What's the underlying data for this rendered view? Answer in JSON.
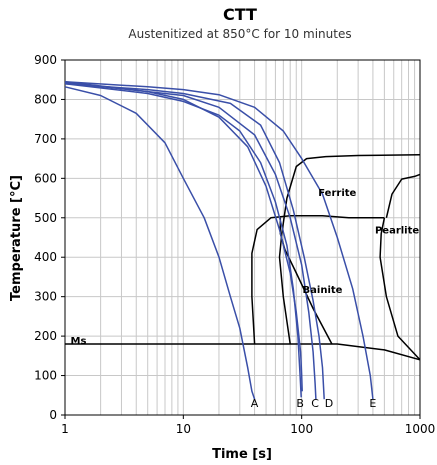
{
  "chart_data": {
    "type": "line",
    "title": "CTT",
    "subtitle": "Austenitized at 850°C for 10 minutes",
    "xlabel": "Time [s]",
    "ylabel": "Temperature [°C]",
    "x_scale": "log",
    "xlim": [
      1,
      1000
    ],
    "ylim": [
      0,
      900
    ],
    "x_ticks": [
      1,
      10,
      100,
      1000
    ],
    "x_tick_labels": [
      "1",
      "10",
      "100",
      "1000"
    ],
    "y_ticks": [
      0,
      100,
      200,
      300,
      400,
      500,
      600,
      700,
      800,
      900
    ],
    "grid": true,
    "cooling_color": "#3a4fa8",
    "boundary_color": "#000000",
    "cooling_curves": [
      {
        "name": "A",
        "label_at": [
          40,
          30
        ],
        "points": [
          [
            1,
            832
          ],
          [
            2,
            810
          ],
          [
            4,
            765
          ],
          [
            7,
            690
          ],
          [
            10,
            600
          ],
          [
            15,
            500
          ],
          [
            20,
            400
          ],
          [
            25,
            300
          ],
          [
            30,
            220
          ],
          [
            35,
            120
          ],
          [
            38,
            60
          ],
          [
            40,
            40
          ]
        ]
      },
      {
        "name": "",
        "points": [
          [
            1,
            845
          ],
          [
            5,
            820
          ],
          [
            10,
            800
          ],
          [
            20,
            755
          ],
          [
            35,
            680
          ],
          [
            50,
            580
          ],
          [
            65,
            470
          ],
          [
            80,
            360
          ],
          [
            90,
            260
          ],
          [
            98,
            160
          ],
          [
            100,
            100
          ],
          [
            101,
            60
          ]
        ]
      },
      {
        "name": "B",
        "label_at": [
          97,
          30
        ],
        "points": [
          [
            1,
            840
          ],
          [
            5,
            815
          ],
          [
            10,
            795
          ],
          [
            20,
            760
          ],
          [
            30,
            720
          ],
          [
            45,
            640
          ],
          [
            60,
            540
          ],
          [
            75,
            430
          ],
          [
            85,
            320
          ],
          [
            93,
            200
          ],
          [
            97,
            100
          ],
          [
            99,
            45
          ]
        ]
      },
      {
        "name": "C",
        "label_at": [
          130,
          30
        ],
        "points": [
          [
            1,
            842
          ],
          [
            5,
            820
          ],
          [
            10,
            810
          ],
          [
            20,
            780
          ],
          [
            40,
            710
          ],
          [
            60,
            610
          ],
          [
            80,
            500
          ],
          [
            100,
            380
          ],
          [
            115,
            260
          ],
          [
            125,
            160
          ],
          [
            130,
            80
          ],
          [
            132,
            40
          ]
        ]
      },
      {
        "name": "D",
        "label_at": [
          170,
          30
        ],
        "points": [
          [
            1,
            840
          ],
          [
            5,
            825
          ],
          [
            10,
            815
          ],
          [
            25,
            790
          ],
          [
            45,
            735
          ],
          [
            65,
            640
          ],
          [
            85,
            520
          ],
          [
            105,
            400
          ],
          [
            125,
            290
          ],
          [
            140,
            200
          ],
          [
            150,
            120
          ],
          [
            155,
            40
          ]
        ]
      },
      {
        "name": "E",
        "label_at": [
          400,
          30
        ],
        "points": [
          [
            1,
            845
          ],
          [
            5,
            832
          ],
          [
            10,
            825
          ],
          [
            20,
            812
          ],
          [
            40,
            780
          ],
          [
            70,
            720
          ],
          [
            100,
            650
          ],
          [
            150,
            560
          ],
          [
            200,
            450
          ],
          [
            270,
            320
          ],
          [
            330,
            200
          ],
          [
            380,
            100
          ],
          [
            400,
            40
          ]
        ]
      }
    ],
    "phase_boundaries": [
      {
        "name": "ferrite-start",
        "points": [
          [
            80,
            180
          ],
          [
            70,
            300
          ],
          [
            65,
            400
          ],
          [
            68,
            460
          ],
          [
            75,
            550
          ],
          [
            90,
            630
          ],
          [
            110,
            650
          ],
          [
            160,
            655
          ],
          [
            300,
            658
          ],
          [
            1000,
            660
          ]
        ]
      },
      {
        "name": "ferrite-finish",
        "points": [
          [
            520,
            500
          ],
          [
            580,
            560
          ],
          [
            700,
            598
          ],
          [
            900,
            605
          ],
          [
            1000,
            610
          ]
        ]
      },
      {
        "name": "bainite-start",
        "points": [
          [
            40,
            180
          ],
          [
            38,
            300
          ],
          [
            38,
            410
          ],
          [
            42,
            470
          ],
          [
            55,
            500
          ],
          [
            80,
            505
          ],
          [
            150,
            505
          ],
          [
            250,
            500
          ],
          [
            500,
            500
          ]
        ]
      },
      {
        "name": "pearlite-finish",
        "points": [
          [
            500,
            500
          ],
          [
            470,
            460
          ],
          [
            460,
            400
          ],
          [
            520,
            300
          ],
          [
            650,
            200
          ],
          [
            1000,
            140
          ]
        ]
      },
      {
        "name": "bainite-finish",
        "points": [
          [
            180,
            180
          ],
          [
            125,
            270
          ],
          [
            90,
            360
          ],
          [
            72,
            420
          ],
          [
            66,
            460
          ],
          [
            66,
            500
          ]
        ]
      },
      {
        "name": "ms-line",
        "points": [
          [
            1,
            180
          ],
          [
            200,
            180
          ],
          [
            330,
            172
          ],
          [
            500,
            165
          ],
          [
            1000,
            140
          ]
        ]
      }
    ],
    "region_labels": [
      {
        "text": "Ferrite",
        "at": [
          200,
          565
        ]
      },
      {
        "text": "Pearlite",
        "at": [
          640,
          470
        ]
      },
      {
        "text": "Bainite",
        "at": [
          150,
          320
        ]
      },
      {
        "text": "Ms",
        "at": [
          1.3,
          190
        ]
      }
    ]
  }
}
